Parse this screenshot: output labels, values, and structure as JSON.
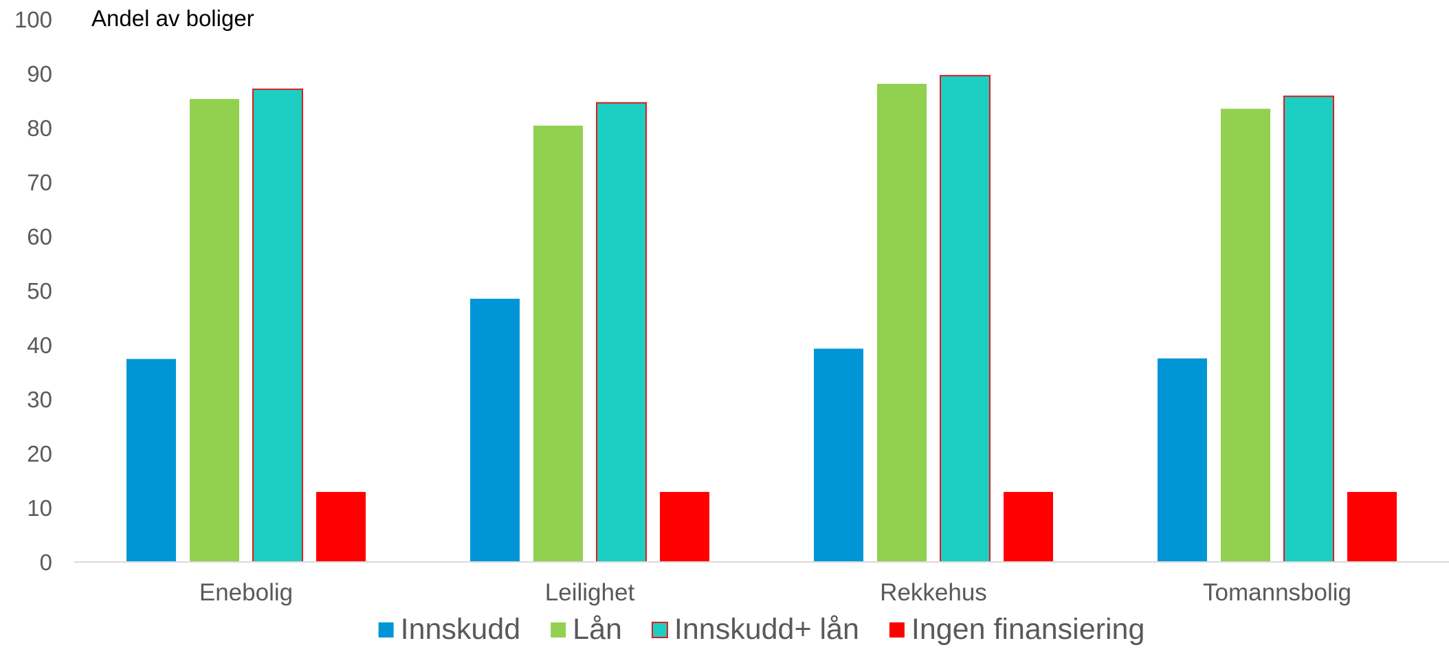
{
  "chart_data": {
    "type": "bar",
    "title": "",
    "ylabel": "Andel av boliger",
    "xlabel": "",
    "ylim": [
      0,
      100
    ],
    "yticks": [
      "0",
      "10",
      "20",
      "30",
      "40",
      "50",
      "60",
      "70",
      "80",
      "90",
      "100"
    ],
    "categories": [
      "Enebolig",
      "Leilighet",
      "Rekkehus",
      "Tomannsbolig"
    ],
    "series": [
      {
        "name": "Innskudd",
        "color": "#0096d6",
        "values": [
          37.4,
          48.5,
          39.3,
          37.5
        ]
      },
      {
        "name": "Lån",
        "color": "#92d050",
        "values": [
          85.3,
          80.4,
          88.1,
          83.5
        ]
      },
      {
        "name": "Innskudd+ lån",
        "color": "#1ccfc2",
        "edge": "#e0191f",
        "values": [
          87.1,
          84.6,
          89.6,
          85.8
        ]
      },
      {
        "name": "Ingen finansiering",
        "color": "#ff0000",
        "values": [
          12.9,
          12.9,
          12.9,
          12.9
        ]
      }
    ],
    "grid": false,
    "legend": "bottom"
  }
}
